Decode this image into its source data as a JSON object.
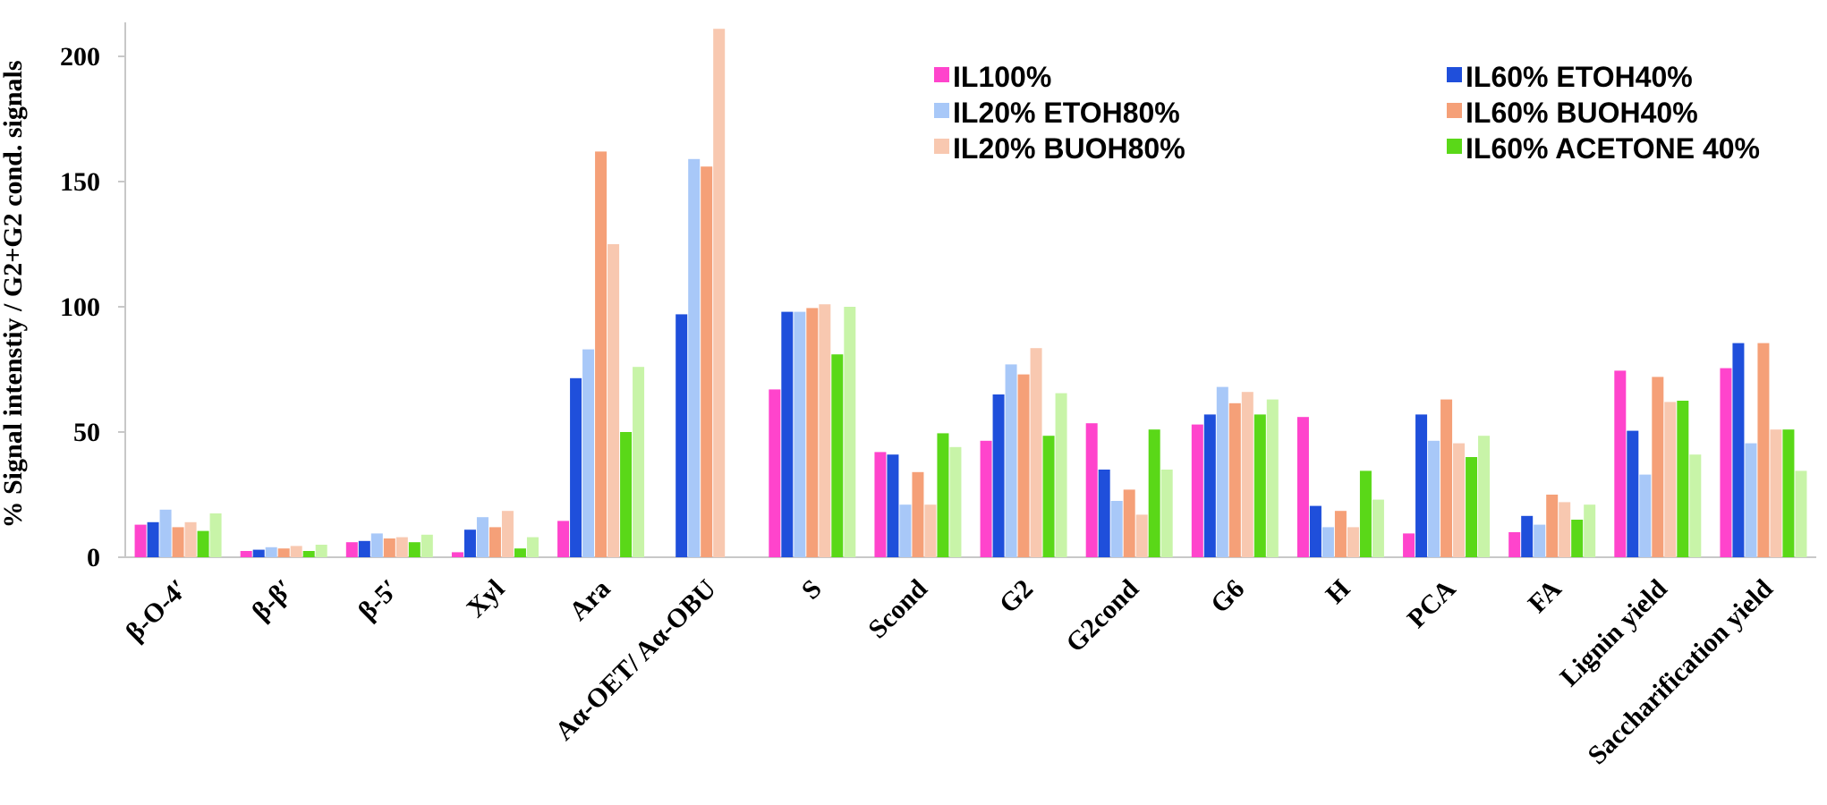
{
  "chart_data": {
    "type": "bar",
    "title": "",
    "xlabel": "",
    "ylabel": "% Signal intenstiy / G2+G2 cond. signals",
    "ylim": [
      0,
      210
    ],
    "yticks": [
      0,
      50,
      100,
      150,
      200
    ],
    "grid": false,
    "legend_position": "top-right",
    "categories": [
      "β-O-4′",
      "β-β′",
      "β-5′",
      "Xyl",
      "Ara",
      "Aα-OET/ Aα-OBU",
      "S",
      "Scond",
      "G2",
      "G2cond",
      "G6",
      "H",
      "PCA",
      "FA",
      "Lignin yield",
      "Saccharification yield"
    ],
    "series": [
      {
        "name": "IL100%",
        "color": "#ff44cc",
        "values": [
          13,
          2.5,
          6,
          2,
          14.5,
          null,
          67,
          42,
          46.5,
          53.5,
          53,
          56,
          9.5,
          10,
          74.5,
          75.5
        ]
      },
      {
        "name": "IL60% ETOH40%",
        "color": "#1f4fdb",
        "values": [
          14,
          3,
          6.5,
          11,
          71.5,
          97,
          98,
          41,
          65,
          35,
          57,
          20.5,
          57,
          16.5,
          50.5,
          85.5
        ]
      },
      {
        "name": "IL20% ETOH80%",
        "color": "#a8c8f8",
        "values": [
          19,
          4,
          9.5,
          16,
          83,
          159,
          98,
          21,
          77,
          22.5,
          68,
          12,
          46.5,
          13,
          33,
          45.5
        ]
      },
      {
        "name": "IL60% BUOH40%",
        "color": "#f5a078",
        "values": [
          12,
          3.5,
          7.5,
          12,
          162,
          156,
          99.5,
          34,
          73,
          27,
          61.5,
          18.5,
          63,
          25,
          72,
          85.5
        ]
      },
      {
        "name": "IL20% BUOH80%",
        "color": "#f8c8b0",
        "values": [
          14,
          4.5,
          8,
          18.5,
          125,
          211,
          101,
          21,
          83.5,
          17,
          66,
          12,
          45.5,
          22,
          62,
          51
        ]
      },
      {
        "name": "IL60% ACETONE 40%",
        "color": "#5ad818",
        "values": [
          10.5,
          2.5,
          6,
          3.5,
          50,
          null,
          81,
          49.5,
          48.5,
          51,
          57,
          34.5,
          40,
          15,
          62.5,
          51
        ]
      },
      {
        "name": "",
        "color": "#c8f4a8",
        "values": [
          17.5,
          5,
          9,
          8,
          76,
          null,
          100,
          44,
          65.5,
          35,
          63,
          23,
          48.5,
          21,
          41,
          34.5
        ]
      }
    ]
  }
}
